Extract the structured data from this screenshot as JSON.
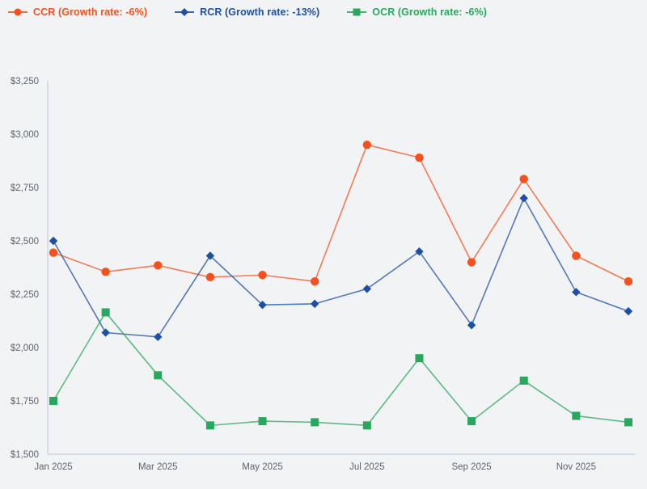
{
  "page": {
    "background_color": "#f2f3f5",
    "axis_line_color": "#c9d4e2",
    "tick_label_color": "#5d646d"
  },
  "legend": {
    "position": "top-left",
    "items": [
      {
        "label": "CCR (Growth rate: -6%)",
        "color": "#f4511e",
        "marker": "circle-icon"
      },
      {
        "label": "RCR (Growth rate: -13%)",
        "color": "#1d4fa3",
        "marker": "diamond-icon"
      },
      {
        "label": "OCR (Growth rate: -6%)",
        "color": "#28a85e",
        "marker": "square-icon"
      }
    ]
  },
  "chart_data": {
    "type": "line",
    "title": "",
    "xlabel": "",
    "ylabel": "",
    "x": [
      "Jan 2025",
      "Feb 2025",
      "Mar 2025",
      "Apr 2025",
      "May 2025",
      "Jun 2025",
      "Jul 2025",
      "Aug 2025",
      "Sep 2025",
      "Oct 2025",
      "Nov 2025",
      "Dec 2025"
    ],
    "x_tick_labels_shown": [
      "Jan 2025",
      "Mar 2025",
      "May 2025",
      "Jul 2025",
      "Sep 2025",
      "Nov 2025"
    ],
    "x_tick_every": 2,
    "series": [
      {
        "name": "CCR",
        "growth_rate": "-6%",
        "color": "#f4511e",
        "marker": "circle",
        "values": [
          2445,
          2355,
          2385,
          2330,
          2340,
          2310,
          2950,
          2890,
          2400,
          2790,
          2430,
          2310
        ]
      },
      {
        "name": "RCR",
        "growth_rate": "-13%",
        "color": "#1d4fa3",
        "marker": "diamond",
        "values": [
          2500,
          2070,
          2050,
          2430,
          2200,
          2205,
          2275,
          2450,
          2105,
          2700,
          2260,
          2170
        ]
      },
      {
        "name": "OCR",
        "growth_rate": "-6%",
        "color": "#28a85e",
        "marker": "square",
        "values": [
          1750,
          2165,
          1870,
          1635,
          1655,
          1650,
          1635,
          1950,
          1655,
          1845,
          1680,
          1650
        ]
      }
    ],
    "ylim": [
      1500,
      3250
    ],
    "y_tick_step": 250,
    "y_tick_labels": [
      "$1,500",
      "$1,750",
      "$2,000",
      "$2,250",
      "$2,500",
      "$2,750",
      "$3,000",
      "$3,250"
    ],
    "y_tick_prefix": "$",
    "grid": false,
    "legend_position": "top-left"
  }
}
